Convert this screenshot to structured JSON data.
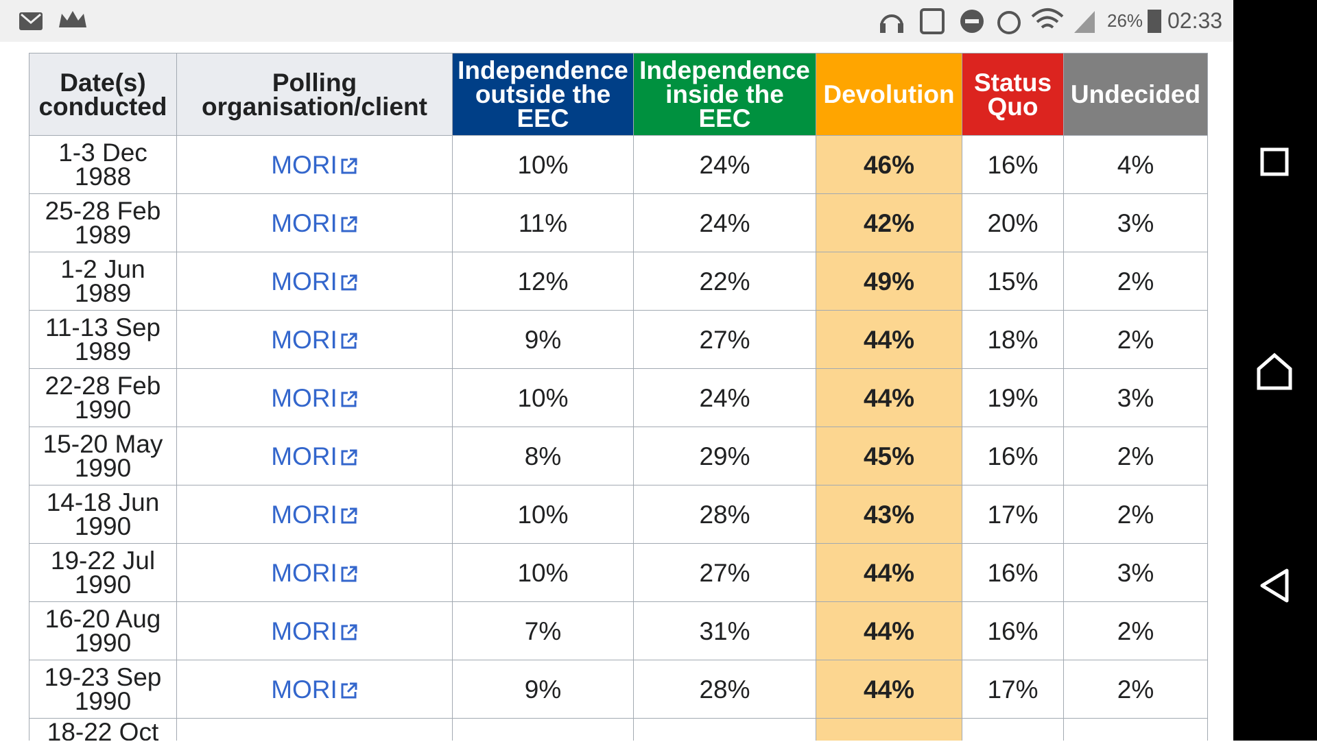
{
  "status_bar": {
    "battery": "26%",
    "time": "02:33"
  },
  "table": {
    "headers": [
      "Date(s) conducted",
      "Polling organisation/client",
      "Independence outside the EEC",
      "Independence inside the EEC",
      "Devolution",
      "Status Quo",
      "Undecided"
    ],
    "rows": [
      [
        "1-3 Dec 1988",
        "MORI",
        "10%",
        "24%",
        "46%",
        "16%",
        "4%"
      ],
      [
        "25-28 Feb 1989",
        "MORI",
        "11%",
        "24%",
        "42%",
        "20%",
        "3%"
      ],
      [
        "1-2 Jun 1989",
        "MORI",
        "12%",
        "22%",
        "49%",
        "15%",
        "2%"
      ],
      [
        "11-13 Sep 1989",
        "MORI",
        "9%",
        "27%",
        "44%",
        "18%",
        "2%"
      ],
      [
        "22-28 Feb 1990",
        "MORI",
        "10%",
        "24%",
        "44%",
        "19%",
        "3%"
      ],
      [
        "15-20 May 1990",
        "MORI",
        "8%",
        "29%",
        "45%",
        "16%",
        "2%"
      ],
      [
        "14-18 Jun 1990",
        "MORI",
        "10%",
        "28%",
        "43%",
        "17%",
        "2%"
      ],
      [
        "19-22 Jul 1990",
        "MORI",
        "10%",
        "27%",
        "44%",
        "16%",
        "3%"
      ],
      [
        "16-20 Aug 1990",
        "MORI",
        "7%",
        "31%",
        "44%",
        "16%",
        "2%"
      ],
      [
        "19-23 Sep 1990",
        "MORI",
        "9%",
        "28%",
        "44%",
        "17%",
        "2%"
      ]
    ],
    "partial_row": "18-22 Oct"
  }
}
